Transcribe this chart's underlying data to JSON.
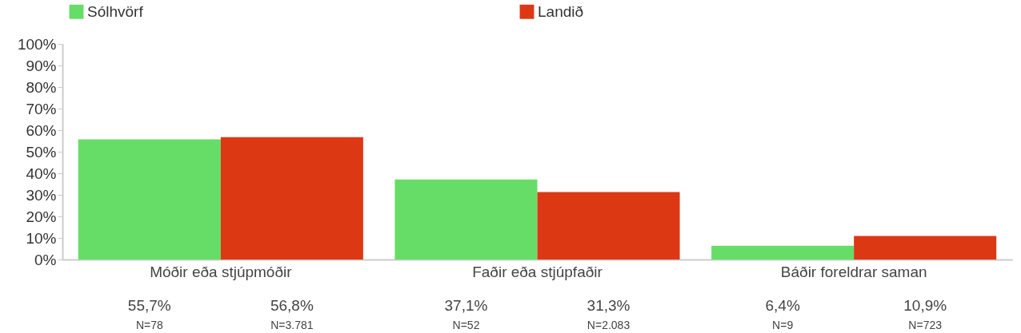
{
  "chart_data": {
    "type": "bar",
    "categories": [
      "Móðir eða stjúpmóðir",
      "Faðir eða stjúpfaðir",
      "Báðir foreldrar saman"
    ],
    "series": [
      {
        "name": "Sólhvörf",
        "color": "#66dd66",
        "values": [
          55.7,
          37.1,
          6.4
        ],
        "value_labels": [
          "55,7%",
          "37,1%",
          "6,4%"
        ]
      },
      {
        "name": "Landið",
        "color": "#dd3814",
        "values": [
          56.8,
          31.3,
          10.9
        ],
        "value_labels": [
          "56,8%",
          "31,3%",
          "10,9%"
        ]
      }
    ],
    "annotations": [
      "N=78",
      "N=3.781",
      "N=52",
      "N=2.083",
      "N=9",
      "N=723"
    ],
    "ylim": [
      0,
      100
    ],
    "yticks": [
      {
        "value": 0,
        "label": "0%"
      },
      {
        "value": 10,
        "label": "10%"
      },
      {
        "value": 20,
        "label": "20%"
      },
      {
        "value": 30,
        "label": "30%"
      },
      {
        "value": 40,
        "label": "40%"
      },
      {
        "value": 50,
        "label": "50%"
      },
      {
        "value": 60,
        "label": "60%"
      },
      {
        "value": 70,
        "label": "70%"
      },
      {
        "value": 80,
        "label": "80%"
      },
      {
        "value": 90,
        "label": "90%"
      },
      {
        "value": 100,
        "label": "100%"
      }
    ],
    "grid": false,
    "legend": "top"
  }
}
